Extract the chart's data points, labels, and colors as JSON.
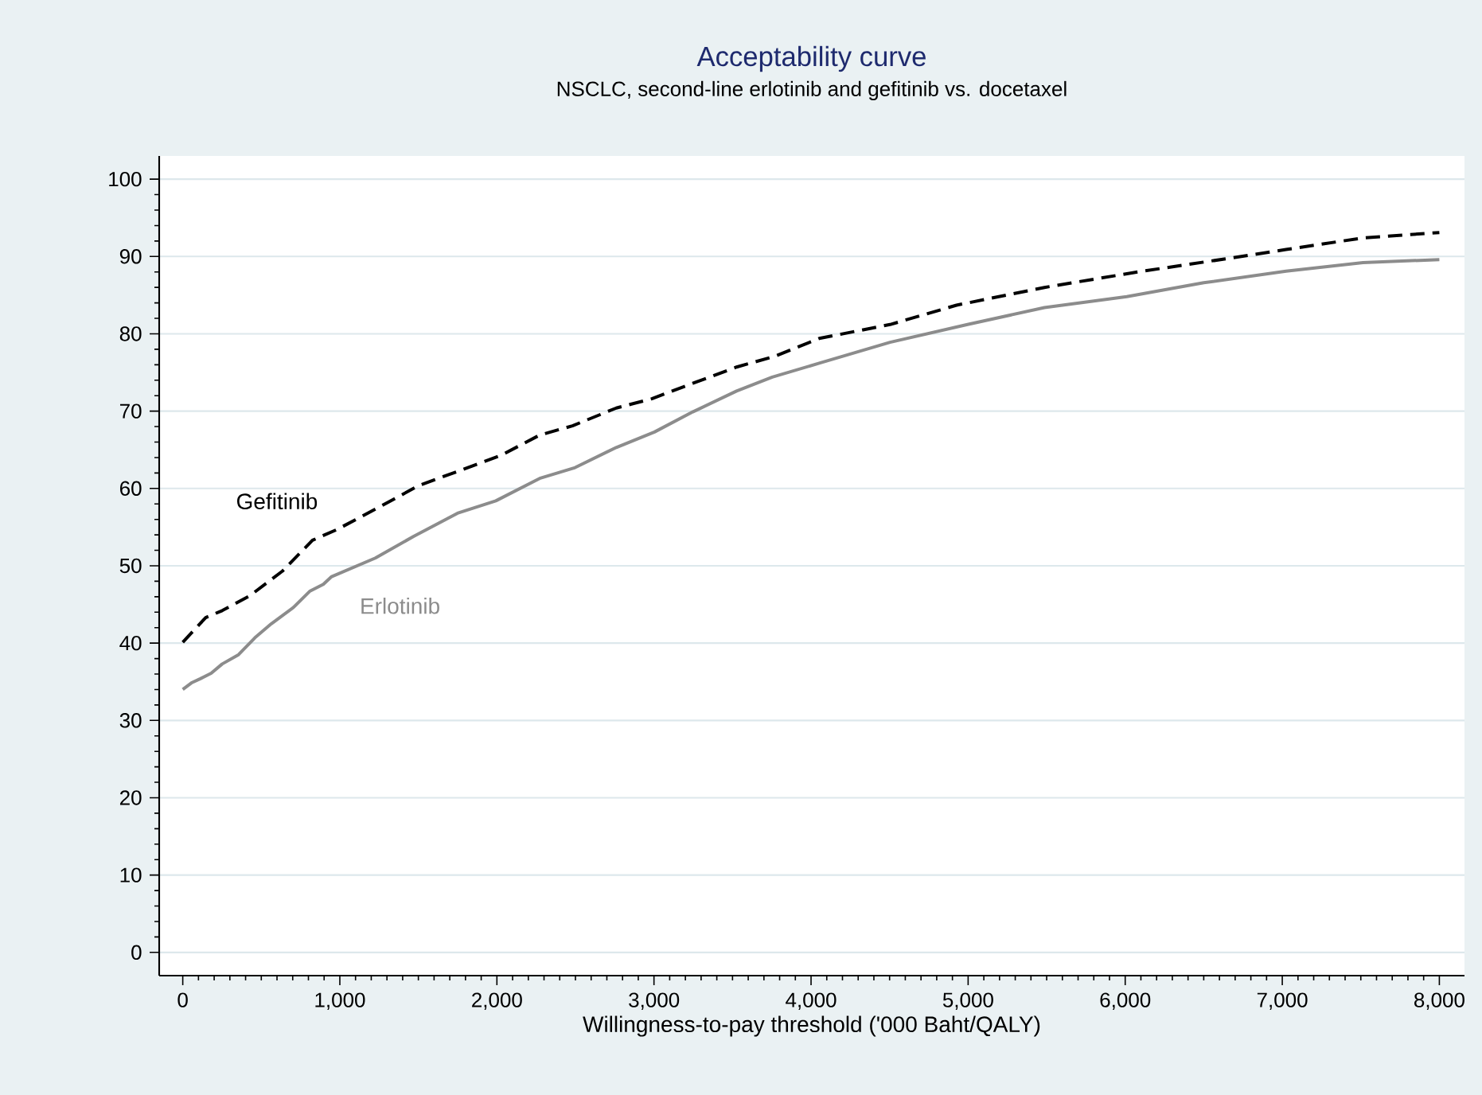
{
  "chart_data": {
    "type": "line",
    "title": "Acceptability curve",
    "subtitle": "NSCLC, second-line erlotinib and gefitinib vs. docetaxel",
    "xlabel": "Willingness-to-pay threshold ('000 Baht/QALY)",
    "xlim": [
      -150,
      8160
    ],
    "ylim": [
      -3,
      103
    ],
    "xticks": [
      0,
      {
        "value": 1000,
        "label": "1,000"
      },
      {
        "value": 2000,
        "label": "2,000"
      },
      {
        "value": 3000,
        "label": "3,000"
      },
      {
        "value": 4000,
        "label": "4,000"
      },
      {
        "value": 5000,
        "label": "5,000"
      },
      {
        "value": 6000,
        "label": "6,000"
      },
      {
        "value": 7000,
        "label": "7,000"
      },
      {
        "value": 8000,
        "label": "8,000"
      }
    ],
    "yticks": [
      0,
      10,
      20,
      30,
      40,
      50,
      60,
      70,
      80,
      90,
      100
    ],
    "grid": "y",
    "marker": "none",
    "series": [
      {
        "name": "Gefitinib",
        "color": "#000000",
        "line_style": "dashed",
        "x": [
          0,
          146,
          251,
          425,
          634,
          826,
          983,
          1261,
          1505,
          1749,
          2028,
          2272,
          2481,
          2760,
          2986,
          3247,
          3526,
          3770,
          4052,
          4503,
          4926,
          5486,
          6080,
          6673,
          7024,
          7514,
          8000
        ],
        "values": [
          40.1,
          43.3,
          44.2,
          46.1,
          49.3,
          53.3,
          54.7,
          57.7,
          60.4,
          62.2,
          64.3,
          66.9,
          68.1,
          70.4,
          71.6,
          73.6,
          75.7,
          77.1,
          79.4,
          81.2,
          83.7,
          86.0,
          88.0,
          89.8,
          90.9,
          92.4,
          93.1
        ]
      },
      {
        "name": "Erlotinib",
        "color": "#8c8c8c",
        "line_style": "solid",
        "x": [
          0,
          59,
          112,
          181,
          251,
          355,
          460,
          564,
          704,
          808,
          895,
          948,
          1226,
          1470,
          1749,
          1993,
          2272,
          2498,
          2760,
          3003,
          3247,
          3526,
          3753,
          4052,
          4503,
          4996,
          5486,
          6010,
          6500,
          7024,
          7514,
          8000
        ],
        "values": [
          34.0,
          34.9,
          35.4,
          36.1,
          37.3,
          38.5,
          40.7,
          42.5,
          44.6,
          46.7,
          47.6,
          48.6,
          51.0,
          53.8,
          56.8,
          58.4,
          61.3,
          62.7,
          65.3,
          67.3,
          69.9,
          72.6,
          74.4,
          76.2,
          78.9,
          81.2,
          83.4,
          84.8,
          86.6,
          88.1,
          89.2,
          89.6
        ]
      }
    ]
  }
}
